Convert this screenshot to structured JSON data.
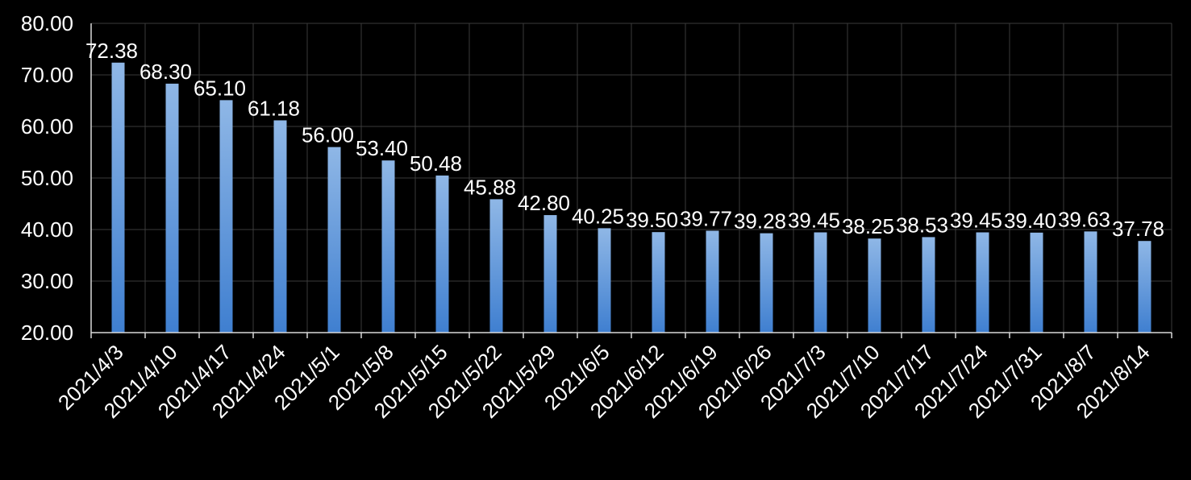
{
  "colors": {
    "background": "#000000",
    "bar_top": "#8fb7e6",
    "bar_bottom": "#3f7fd0",
    "grid": "#3a3a3a",
    "axis": "#d9d9d9",
    "text": "#ffffff"
  },
  "chart_data": {
    "type": "bar",
    "title": "",
    "xlabel": "",
    "ylabel": "",
    "ylim": [
      20,
      80
    ],
    "yticks": [
      "20.00",
      "30.00",
      "40.00",
      "50.00",
      "60.00",
      "70.00",
      "80.00"
    ],
    "grid": true,
    "categories": [
      "2021/4/3",
      "2021/4/10",
      "2021/4/17",
      "2021/4/24",
      "2021/5/1",
      "2021/5/8",
      "2021/5/15",
      "2021/5/22",
      "2021/5/29",
      "2021/6/5",
      "2021/6/12",
      "2021/6/19",
      "2021/6/26",
      "2021/7/3",
      "2021/7/10",
      "2021/7/17",
      "2021/7/24",
      "2021/7/31",
      "2021/8/7",
      "2021/8/14"
    ],
    "values": [
      72.38,
      68.3,
      65.1,
      61.18,
      56.0,
      53.4,
      50.48,
      45.88,
      42.8,
      40.25,
      39.5,
      39.77,
      39.28,
      39.45,
      38.25,
      38.53,
      39.45,
      39.4,
      39.63,
      37.78
    ],
    "data_labels": [
      "72.38",
      "68.30",
      "65.10",
      "61.18",
      "56.00",
      "53.40",
      "50.48",
      "45.88",
      "42.80",
      "40.25",
      "39.50",
      "39.77",
      "39.28",
      "39.45",
      "38.25",
      "38.53",
      "39.45",
      "39.40",
      "39.63",
      "37.78"
    ]
  }
}
